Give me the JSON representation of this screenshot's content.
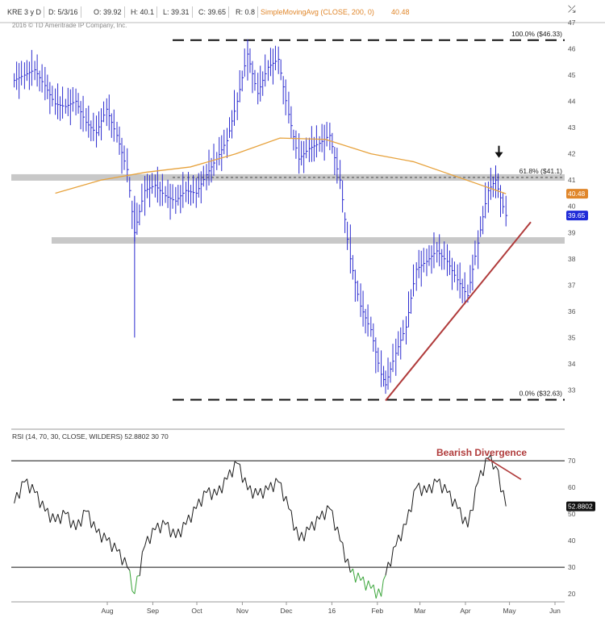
{
  "header": {
    "symbol": "KRE 3 y D",
    "date": "D: 5/3/16",
    "open": "O: 39.92",
    "high": "H: 40.1",
    "low": "L: 39.31",
    "close": "C: 39.65",
    "range": "R: 0.8",
    "sma_label": "SimpleMovingAvg (CLOSE, 200, 0)",
    "sma_value": "40.48",
    "copyright": "2016 © TD Ameritrade IP Company, Inc."
  },
  "colors": {
    "bars": "#2c2ccf",
    "sma": "#e7a23c",
    "trend": "#b03b3b",
    "rsi_line": "#1a1a1a",
    "rsi_oversold": "#3aa53a",
    "zone": "#c8c8c8",
    "last_badge": "#1f2bd8",
    "sma_badge": "#e0862a"
  },
  "chart_data": [
    {
      "type": "ohlc",
      "title": "KRE 3 y D",
      "x_months": [
        "Aug",
        "Sep",
        "Oct",
        "Nov",
        "Dec",
        "16",
        "Feb",
        "Mar",
        "Apr",
        "May",
        "Jun"
      ],
      "ylim": [
        32,
        47
      ],
      "yticks": [
        33,
        34,
        35,
        36,
        37,
        38,
        39,
        40,
        41,
        42,
        43,
        44,
        45,
        46,
        47
      ],
      "fib_levels": [
        {
          "label": "100.0%  ($46.33)",
          "value": 46.33
        },
        {
          "label": "61.8%  ($41.1)",
          "value": 41.1
        },
        {
          "label": "0.0%  ($32.63)",
          "value": 32.63
        }
      ],
      "support_zone": 38.7,
      "resistance_zone": 41.1,
      "last_close": "39.65",
      "sma_last": "40.48",
      "trendline": [
        {
          "x": "2016-02-11",
          "y": 32.6
        },
        {
          "x": "2016-06-01",
          "y": 39.4
        }
      ],
      "series": [
        {
          "name": "SimpleMovingAvg (CLOSE, 200, 0)",
          "values": [
            {
              "x": "2015-07-01",
              "y": 40.5
            },
            {
              "x": "2015-08-01",
              "y": 41.0
            },
            {
              "x": "2015-09-01",
              "y": 41.3
            },
            {
              "x": "2015-10-01",
              "y": 41.5
            },
            {
              "x": "2015-11-01",
              "y": 42.0
            },
            {
              "x": "2015-12-01",
              "y": 42.6
            },
            {
              "x": "2016-01-01",
              "y": 42.55
            },
            {
              "x": "2016-02-01",
              "y": 42.0
            },
            {
              "x": "2016-03-01",
              "y": 41.7
            },
            {
              "x": "2016-04-01",
              "y": 41.1
            },
            {
              "x": "2016-05-03",
              "y": 40.48
            }
          ]
        },
        {
          "name": "KRE",
          "values": [
            {
              "x": "2015-06-03",
              "y": 44.8
            },
            {
              "x": "2015-06-10",
              "y": 45.0
            },
            {
              "x": "2015-06-17",
              "y": 45.2
            },
            {
              "x": "2015-06-24",
              "y": 44.6
            },
            {
              "x": "2015-07-01",
              "y": 43.9
            },
            {
              "x": "2015-07-08",
              "y": 43.8
            },
            {
              "x": "2015-07-15",
              "y": 44.0
            },
            {
              "x": "2015-07-22",
              "y": 43.2
            },
            {
              "x": "2015-07-29",
              "y": 42.8
            },
            {
              "x": "2015-08-05",
              "y": 43.7
            },
            {
              "x": "2015-08-12",
              "y": 42.7
            },
            {
              "x": "2015-08-19",
              "y": 41.4
            },
            {
              "x": "2015-08-24",
              "y": 39.0
            },
            {
              "x": "2015-08-31",
              "y": 40.6
            },
            {
              "x": "2015-09-07",
              "y": 40.8
            },
            {
              "x": "2015-09-14",
              "y": 40.4
            },
            {
              "x": "2015-09-21",
              "y": 40.2
            },
            {
              "x": "2015-09-28",
              "y": 40.6
            },
            {
              "x": "2015-10-05",
              "y": 40.5
            },
            {
              "x": "2015-10-12",
              "y": 41.2
            },
            {
              "x": "2015-10-19",
              "y": 41.8
            },
            {
              "x": "2015-10-26",
              "y": 42.5
            },
            {
              "x": "2015-11-02",
              "y": 44.0
            },
            {
              "x": "2015-11-09",
              "y": 45.8
            },
            {
              "x": "2015-11-16",
              "y": 44.3
            },
            {
              "x": "2015-11-23",
              "y": 45.3
            },
            {
              "x": "2015-11-30",
              "y": 45.6
            },
            {
              "x": "2015-12-07",
              "y": 43.5
            },
            {
              "x": "2015-12-14",
              "y": 41.8
            },
            {
              "x": "2015-12-21",
              "y": 42.2
            },
            {
              "x": "2015-12-28",
              "y": 42.4
            },
            {
              "x": "2016-01-04",
              "y": 42.7
            },
            {
              "x": "2016-01-11",
              "y": 41.0
            },
            {
              "x": "2016-01-18",
              "y": 38.0
            },
            {
              "x": "2016-01-25",
              "y": 36.2
            },
            {
              "x": "2016-02-01",
              "y": 35.3
            },
            {
              "x": "2016-02-08",
              "y": 33.6
            },
            {
              "x": "2016-02-11",
              "y": 33.2
            },
            {
              "x": "2016-02-18",
              "y": 34.4
            },
            {
              "x": "2016-02-25",
              "y": 35.4
            },
            {
              "x": "2016-03-03",
              "y": 37.6
            },
            {
              "x": "2016-03-10",
              "y": 37.9
            },
            {
              "x": "2016-03-17",
              "y": 38.3
            },
            {
              "x": "2016-03-24",
              "y": 37.9
            },
            {
              "x": "2016-03-31",
              "y": 37.2
            },
            {
              "x": "2016-04-07",
              "y": 36.6
            },
            {
              "x": "2016-04-14",
              "y": 38.6
            },
            {
              "x": "2016-04-21",
              "y": 40.6
            },
            {
              "x": "2016-04-26",
              "y": 41.0
            },
            {
              "x": "2016-05-03",
              "y": 39.65
            }
          ]
        }
      ],
      "annotations": [
        "down-arrow at 61.8% retest (late Apr 2016)"
      ]
    },
    {
      "type": "line",
      "title": "RSI (14, 70, 30, CLOSE, WILDERS)",
      "header_values": [
        "52.8802",
        "30",
        "70"
      ],
      "ylim": [
        17,
        77
      ],
      "yticks": [
        20,
        30,
        40,
        50,
        60,
        70
      ],
      "levels": [
        70,
        30
      ],
      "last_value": "52.8802",
      "annotation": "Bearish Divergence",
      "divergence_line": [
        {
          "x": "2016-04-20",
          "y": 71
        },
        {
          "x": "2016-05-10",
          "y": 63
        }
      ],
      "series": [
        {
          "name": "RSI",
          "values": [
            {
              "x": "2015-06-03",
              "y": 54
            },
            {
              "x": "2015-06-10",
              "y": 62
            },
            {
              "x": "2015-06-17",
              "y": 58
            },
            {
              "x": "2015-06-24",
              "y": 51
            },
            {
              "x": "2015-07-01",
              "y": 47
            },
            {
              "x": "2015-07-08",
              "y": 50
            },
            {
              "x": "2015-07-15",
              "y": 44
            },
            {
              "x": "2015-07-22",
              "y": 51
            },
            {
              "x": "2015-07-29",
              "y": 43
            },
            {
              "x": "2015-08-05",
              "y": 40
            },
            {
              "x": "2015-08-12",
              "y": 36
            },
            {
              "x": "2015-08-19",
              "y": 30
            },
            {
              "x": "2015-08-24",
              "y": 20
            },
            {
              "x": "2015-08-31",
              "y": 38
            },
            {
              "x": "2015-09-07",
              "y": 44
            },
            {
              "x": "2015-09-14",
              "y": 46
            },
            {
              "x": "2015-09-21",
              "y": 41
            },
            {
              "x": "2015-09-28",
              "y": 46
            },
            {
              "x": "2015-10-05",
              "y": 52
            },
            {
              "x": "2015-10-12",
              "y": 58
            },
            {
              "x": "2015-10-19",
              "y": 57
            },
            {
              "x": "2015-10-26",
              "y": 63
            },
            {
              "x": "2015-11-02",
              "y": 69
            },
            {
              "x": "2015-11-09",
              "y": 59
            },
            {
              "x": "2015-11-16",
              "y": 57
            },
            {
              "x": "2015-11-23",
              "y": 59
            },
            {
              "x": "2015-11-30",
              "y": 62
            },
            {
              "x": "2015-12-07",
              "y": 52
            },
            {
              "x": "2015-12-14",
              "y": 40
            },
            {
              "x": "2015-12-21",
              "y": 44
            },
            {
              "x": "2015-12-28",
              "y": 48
            },
            {
              "x": "2016-01-04",
              "y": 52
            },
            {
              "x": "2016-01-11",
              "y": 40
            },
            {
              "x": "2016-01-18",
              "y": 28
            },
            {
              "x": "2016-01-25",
              "y": 25
            },
            {
              "x": "2016-02-01",
              "y": 22
            },
            {
              "x": "2016-02-08",
              "y": 19
            },
            {
              "x": "2016-02-11",
              "y": 27
            },
            {
              "x": "2016-02-18",
              "y": 38
            },
            {
              "x": "2016-02-25",
              "y": 46
            },
            {
              "x": "2016-03-03",
              "y": 60
            },
            {
              "x": "2016-03-10",
              "y": 58
            },
            {
              "x": "2016-03-17",
              "y": 62
            },
            {
              "x": "2016-03-24",
              "y": 58
            },
            {
              "x": "2016-03-31",
              "y": 52
            },
            {
              "x": "2016-04-07",
              "y": 45
            },
            {
              "x": "2016-04-14",
              "y": 62
            },
            {
              "x": "2016-04-21",
              "y": 71
            },
            {
              "x": "2016-04-26",
              "y": 68
            },
            {
              "x": "2016-05-03",
              "y": 52.88
            }
          ]
        }
      ]
    }
  ]
}
